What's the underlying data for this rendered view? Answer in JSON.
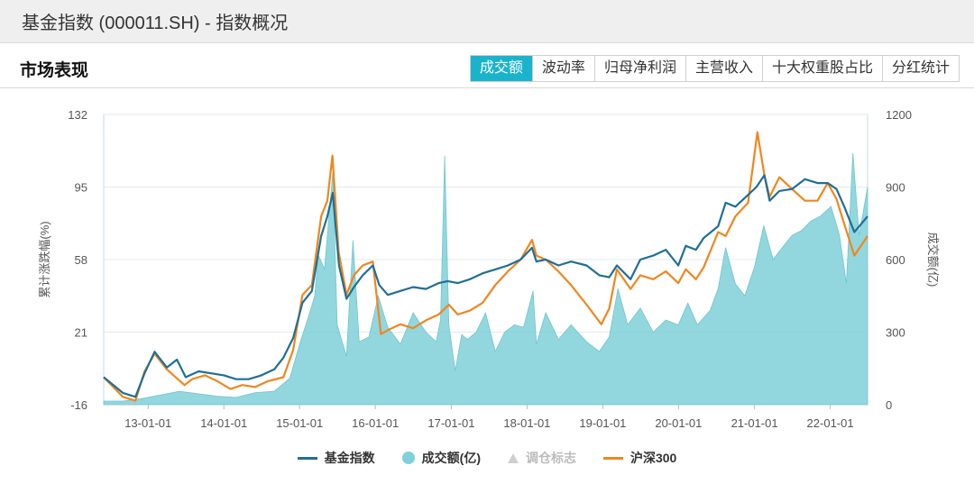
{
  "page": {
    "title": "基金指数 (000011.SH) - 指数概况"
  },
  "section": {
    "title": "市场表现"
  },
  "tabs": [
    {
      "label": "成交额",
      "active": true
    },
    {
      "label": "波动率",
      "active": false
    },
    {
      "label": "归母净利润",
      "active": false
    },
    {
      "label": "主营收入",
      "active": false
    },
    {
      "label": "十大权重股占比",
      "active": false
    },
    {
      "label": "分红统计",
      "active": false
    }
  ],
  "colors": {
    "fund_index": "#1f6f96",
    "volume": "#7fd0d8",
    "hs300": "#f0861e",
    "adjust": "#cfcfcf",
    "active_tab": "#1ab3cc"
  },
  "chart_data": {
    "type": "line",
    "xlabel": "",
    "ylabel_left": "累计涨跌幅(%)",
    "ylabel_right": "成交额(亿)",
    "x_ticks": [
      "13-01-01",
      "14-01-01",
      "15-01-01",
      "16-01-01",
      "17-01-01",
      "18-01-01",
      "19-01-01",
      "20-01-01",
      "21-01-01",
      "22-01-01"
    ],
    "xlim": [
      "2012-06-01",
      "2022-06-30"
    ],
    "y_left_ticks": [
      "132",
      "95",
      "58",
      "21",
      "-16"
    ],
    "y_left_lim": [
      -16,
      132
    ],
    "y_right_ticks": [
      "1200",
      "900",
      "600",
      "300",
      "0"
    ],
    "y_right_lim": [
      0,
      1200
    ],
    "grid": true,
    "legend_position": "bottom",
    "series": [
      {
        "name": "基金指数",
        "axis": "left",
        "style": "line",
        "x": [
          "2012-06-01",
          "2012-09-01",
          "2012-11-01",
          "2012-12-15",
          "2013-02-01",
          "2013-04-01",
          "2013-05-20",
          "2013-07-01",
          "2013-09-01",
          "2013-11-01",
          "2014-01-01",
          "2014-03-01",
          "2014-05-01",
          "2014-07-01",
          "2014-09-01",
          "2014-10-15",
          "2014-12-01",
          "2015-01-15",
          "2015-03-01",
          "2015-04-15",
          "2015-05-15",
          "2015-06-10",
          "2015-07-10",
          "2015-08-15",
          "2015-09-20",
          "2015-11-01",
          "2015-12-20",
          "2016-01-20",
          "2016-03-01",
          "2016-05-01",
          "2016-07-01",
          "2016-09-01",
          "2016-11-01",
          "2016-12-15",
          "2017-02-01",
          "2017-04-01",
          "2017-06-01",
          "2017-08-01",
          "2017-10-01",
          "2017-12-01",
          "2018-01-25",
          "2018-02-15",
          "2018-04-01",
          "2018-06-01",
          "2018-08-01",
          "2018-10-15",
          "2018-12-15",
          "2019-02-01",
          "2019-03-10",
          "2019-05-15",
          "2019-07-01",
          "2019-09-01",
          "2019-11-01",
          "2019-12-31",
          "2020-02-05",
          "2020-03-25",
          "2020-05-01",
          "2020-07-10",
          "2020-08-15",
          "2020-10-01",
          "2020-12-01",
          "2021-01-10",
          "2021-02-18",
          "2021-03-15",
          "2021-05-01",
          "2021-07-01",
          "2021-09-01",
          "2021-11-01",
          "2021-12-20",
          "2022-01-31",
          "2022-03-10",
          "2022-04-27",
          "2022-06-30"
        ],
        "values": [
          -2,
          -10,
          -12,
          0,
          11,
          3,
          7,
          -2,
          1,
          0,
          -1,
          -3,
          -3,
          -1,
          2,
          8,
          18,
          36,
          42,
          70,
          80,
          92,
          55,
          38,
          44,
          50,
          55,
          45,
          40,
          42,
          44,
          43,
          46,
          47,
          46,
          48,
          51,
          53,
          55,
          58,
          64,
          57,
          58,
          55,
          57,
          55,
          50,
          49,
          55,
          48,
          58,
          60,
          63,
          55,
          65,
          63,
          69,
          75,
          87,
          85,
          91,
          95,
          101,
          88,
          93,
          94,
          99,
          97,
          97,
          94,
          85,
          72,
          80
        ]
      },
      {
        "name": "成交额(亿)",
        "axis": "right",
        "style": "area",
        "x": [
          "2012-06-01",
          "2012-09-01",
          "2012-12-01",
          "2013-03-01",
          "2013-06-01",
          "2013-09-01",
          "2013-12-01",
          "2014-03-01",
          "2014-06-01",
          "2014-09-01",
          "2014-11-15",
          "2015-01-01",
          "2015-02-15",
          "2015-03-15",
          "2015-04-01",
          "2015-05-01",
          "2015-06-10",
          "2015-07-01",
          "2015-08-15",
          "2015-09-15",
          "2015-10-15",
          "2015-12-01",
          "2016-01-15",
          "2016-03-01",
          "2016-05-01",
          "2016-07-01",
          "2016-09-01",
          "2016-10-20",
          "2016-11-10",
          "2016-11-30",
          "2016-12-20",
          "2017-01-20",
          "2017-02-20",
          "2017-03-20",
          "2017-05-01",
          "2017-06-15",
          "2017-08-01",
          "2017-09-15",
          "2017-11-01",
          "2017-12-15",
          "2018-01-30",
          "2018-02-15",
          "2018-04-01",
          "2018-06-01",
          "2018-08-01",
          "2018-10-15",
          "2018-12-15",
          "2019-02-01",
          "2019-03-15",
          "2019-05-01",
          "2019-07-01",
          "2019-09-01",
          "2019-11-01",
          "2019-12-31",
          "2020-02-15",
          "2020-04-01",
          "2020-06-01",
          "2020-07-10",
          "2020-08-15",
          "2020-10-01",
          "2020-11-15",
          "2021-01-01",
          "2021-02-15",
          "2021-04-01",
          "2021-05-15",
          "2021-07-01",
          "2021-08-15",
          "2021-10-01",
          "2021-11-15",
          "2022-01-05",
          "2022-02-15",
          "2022-03-20",
          "2022-04-20",
          "2022-05-20",
          "2022-06-30"
        ],
        "values": [
          15,
          15,
          25,
          40,
          55,
          45,
          35,
          30,
          50,
          55,
          110,
          250,
          370,
          450,
          620,
          560,
          960,
          330,
          200,
          680,
          260,
          280,
          450,
          320,
          250,
          380,
          300,
          260,
          350,
          1030,
          330,
          140,
          290,
          270,
          300,
          380,
          220,
          300,
          330,
          320,
          470,
          250,
          380,
          270,
          330,
          260,
          220,
          280,
          480,
          330,
          400,
          300,
          350,
          330,
          420,
          330,
          390,
          480,
          650,
          500,
          450,
          570,
          740,
          600,
          650,
          700,
          720,
          760,
          780,
          820,
          700,
          500,
          1040,
          700,
          900
        ]
      },
      {
        "name": "调仓标志",
        "axis": "left",
        "style": "marker",
        "x": [],
        "values": []
      },
      {
        "name": "沪深300",
        "axis": "left",
        "style": "line",
        "x": [
          "2012-06-01",
          "2012-09-01",
          "2012-11-01",
          "2012-12-15",
          "2013-02-01",
          "2013-04-01",
          "2013-06-25",
          "2013-08-01",
          "2013-10-01",
          "2013-12-01",
          "2014-02-01",
          "2014-04-01",
          "2014-06-01",
          "2014-08-01",
          "2014-10-15",
          "2014-12-01",
          "2015-01-15",
          "2015-03-01",
          "2015-04-15",
          "2015-05-15",
          "2015-06-08",
          "2015-07-08",
          "2015-08-15",
          "2015-09-20",
          "2015-11-01",
          "2015-12-20",
          "2016-01-28",
          "2016-03-01",
          "2016-05-01",
          "2016-07-01",
          "2016-09-01",
          "2016-11-01",
          "2016-12-20",
          "2017-02-01",
          "2017-04-01",
          "2017-06-01",
          "2017-08-01",
          "2017-10-01",
          "2017-12-01",
          "2018-01-25",
          "2018-02-15",
          "2018-04-01",
          "2018-06-01",
          "2018-08-01",
          "2018-10-15",
          "2018-12-25",
          "2019-02-01",
          "2019-03-10",
          "2019-05-15",
          "2019-07-01",
          "2019-09-01",
          "2019-11-01",
          "2019-12-31",
          "2020-02-05",
          "2020-03-25",
          "2020-05-01",
          "2020-07-10",
          "2020-08-15",
          "2020-10-01",
          "2020-12-01",
          "2021-01-15",
          "2021-02-18",
          "2021-03-15",
          "2021-05-01",
          "2021-07-01",
          "2021-09-01",
          "2021-11-01",
          "2021-12-20",
          "2022-01-31",
          "2022-03-10",
          "2022-04-27",
          "2022-06-30"
        ],
        "values": [
          -2,
          -12,
          -14,
          1,
          10,
          2,
          -6,
          -3,
          -1,
          -4,
          -8,
          -6,
          -7,
          -4,
          -2,
          12,
          40,
          45,
          80,
          88,
          111,
          62,
          40,
          50,
          55,
          57,
          20,
          22,
          25,
          23,
          27,
          30,
          35,
          30,
          32,
          36,
          45,
          52,
          58,
          68,
          60,
          58,
          52,
          45,
          35,
          25,
          33,
          53,
          43,
          50,
          48,
          52,
          46,
          53,
          48,
          54,
          72,
          70,
          80,
          87,
          123,
          101,
          90,
          100,
          94,
          88,
          88,
          97,
          89,
          76,
          60,
          70
        ]
      }
    ]
  }
}
